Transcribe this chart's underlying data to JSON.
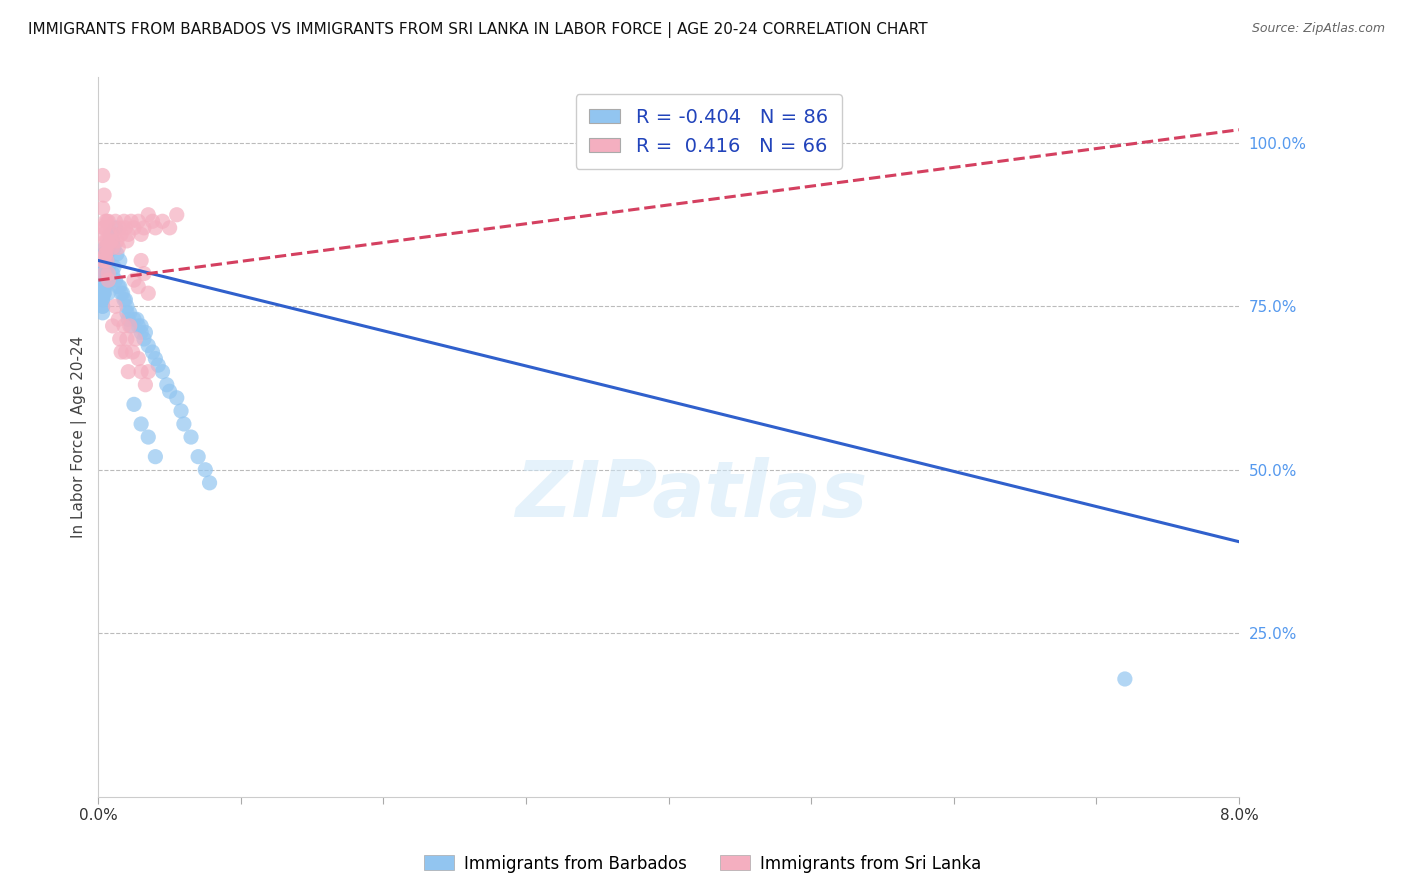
{
  "title": "IMMIGRANTS FROM BARBADOS VS IMMIGRANTS FROM SRI LANKA IN LABOR FORCE | AGE 20-24 CORRELATION CHART",
  "source": "Source: ZipAtlas.com",
  "ylabel": "In Labor Force | Age 20-24",
  "right_yticks": [
    "100.0%",
    "75.0%",
    "50.0%",
    "25.0%"
  ],
  "right_ytick_vals": [
    1.0,
    0.75,
    0.5,
    0.25
  ],
  "xlim": [
    0.0,
    0.08
  ],
  "ylim": [
    0.0,
    1.1
  ],
  "watermark": "ZIPatlas",
  "legend_r_blue": "-0.404",
  "legend_n_blue": "86",
  "legend_r_pink": " 0.416",
  "legend_n_pink": "66",
  "blue_color": "#92c5f0",
  "pink_color": "#f4afc0",
  "blue_line_color": "#3060cc",
  "pink_line_color": "#d44060",
  "background_color": "#ffffff",
  "blue_scatter_x": [
    0.0003,
    0.0005,
    0.0004,
    0.0006,
    0.0007,
    0.0003,
    0.0005,
    0.0004,
    0.0006,
    0.0003,
    0.0004,
    0.0006,
    0.0005,
    0.0007,
    0.0004,
    0.0005,
    0.0003,
    0.0006,
    0.0005,
    0.0004,
    0.0008,
    0.0006,
    0.0004,
    0.0005,
    0.0007,
    0.0003,
    0.0006,
    0.0005,
    0.0004,
    0.0003,
    0.0007,
    0.0005,
    0.0004,
    0.0006,
    0.0003,
    0.0005,
    0.0004,
    0.0006,
    0.0003,
    0.0005,
    0.001,
    0.0012,
    0.0009,
    0.0011,
    0.0013,
    0.0015,
    0.0011,
    0.0012,
    0.001,
    0.0014,
    0.0016,
    0.0018,
    0.002,
    0.0017,
    0.0019,
    0.0015,
    0.0022,
    0.0021,
    0.0023,
    0.002,
    0.0025,
    0.0028,
    0.003,
    0.0027,
    0.0032,
    0.0035,
    0.0033,
    0.003,
    0.0038,
    0.004,
    0.0042,
    0.0045,
    0.0048,
    0.005,
    0.0055,
    0.0058,
    0.006,
    0.0065,
    0.007,
    0.0075,
    0.0078,
    0.0025,
    0.003,
    0.0035,
    0.004,
    0.072
  ],
  "blue_scatter_y": [
    0.82,
    0.8,
    0.83,
    0.79,
    0.81,
    0.78,
    0.84,
    0.77,
    0.8,
    0.76,
    0.82,
    0.79,
    0.81,
    0.77,
    0.83,
    0.8,
    0.75,
    0.82,
    0.78,
    0.8,
    0.85,
    0.83,
    0.79,
    0.81,
    0.84,
    0.77,
    0.82,
    0.8,
    0.78,
    0.76,
    0.84,
    0.81,
    0.78,
    0.83,
    0.75,
    0.8,
    0.77,
    0.82,
    0.74,
    0.8,
    0.85,
    0.87,
    0.86,
    0.84,
    0.83,
    0.82,
    0.81,
    0.79,
    0.8,
    0.78,
    0.77,
    0.76,
    0.75,
    0.77,
    0.76,
    0.78,
    0.74,
    0.73,
    0.72,
    0.74,
    0.73,
    0.72,
    0.71,
    0.73,
    0.7,
    0.69,
    0.71,
    0.72,
    0.68,
    0.67,
    0.66,
    0.65,
    0.63,
    0.62,
    0.61,
    0.59,
    0.57,
    0.55,
    0.52,
    0.5,
    0.48,
    0.6,
    0.57,
    0.55,
    0.52,
    0.18
  ],
  "pink_scatter_x": [
    0.0003,
    0.0005,
    0.0004,
    0.0006,
    0.0003,
    0.0005,
    0.0004,
    0.0003,
    0.0006,
    0.0004,
    0.0007,
    0.0005,
    0.0004,
    0.0006,
    0.0003,
    0.0005,
    0.0004,
    0.0007,
    0.0005,
    0.0006,
    0.0008,
    0.0007,
    0.0009,
    0.001,
    0.0012,
    0.0011,
    0.0013,
    0.0015,
    0.0014,
    0.0016,
    0.0018,
    0.002,
    0.0019,
    0.0021,
    0.0023,
    0.0025,
    0.003,
    0.0028,
    0.0032,
    0.0035,
    0.0038,
    0.004,
    0.0045,
    0.005,
    0.0055,
    0.0025,
    0.003,
    0.0028,
    0.0032,
    0.0035,
    0.001,
    0.0012,
    0.0015,
    0.0014,
    0.0016,
    0.0018,
    0.002,
    0.0019,
    0.0022,
    0.0021,
    0.0024,
    0.0026,
    0.003,
    0.0028,
    0.0033,
    0.0035
  ],
  "pink_scatter_y": [
    0.82,
    0.85,
    0.8,
    0.88,
    0.9,
    0.83,
    0.87,
    0.86,
    0.84,
    0.82,
    0.79,
    0.88,
    0.92,
    0.85,
    0.95,
    0.83,
    0.87,
    0.8,
    0.84,
    0.82,
    0.86,
    0.88,
    0.85,
    0.84,
    0.88,
    0.86,
    0.85,
    0.87,
    0.84,
    0.86,
    0.88,
    0.85,
    0.87,
    0.86,
    0.88,
    0.87,
    0.86,
    0.88,
    0.87,
    0.89,
    0.88,
    0.87,
    0.88,
    0.87,
    0.89,
    0.79,
    0.82,
    0.78,
    0.8,
    0.77,
    0.72,
    0.75,
    0.7,
    0.73,
    0.68,
    0.72,
    0.7,
    0.68,
    0.72,
    0.65,
    0.68,
    0.7,
    0.65,
    0.67,
    0.63,
    0.65
  ],
  "blue_trend_x": [
    0.0,
    0.08
  ],
  "blue_trend_y": [
    0.82,
    0.39
  ],
  "pink_trend_x": [
    0.0,
    0.08
  ],
  "pink_trend_y": [
    0.79,
    1.02
  ]
}
